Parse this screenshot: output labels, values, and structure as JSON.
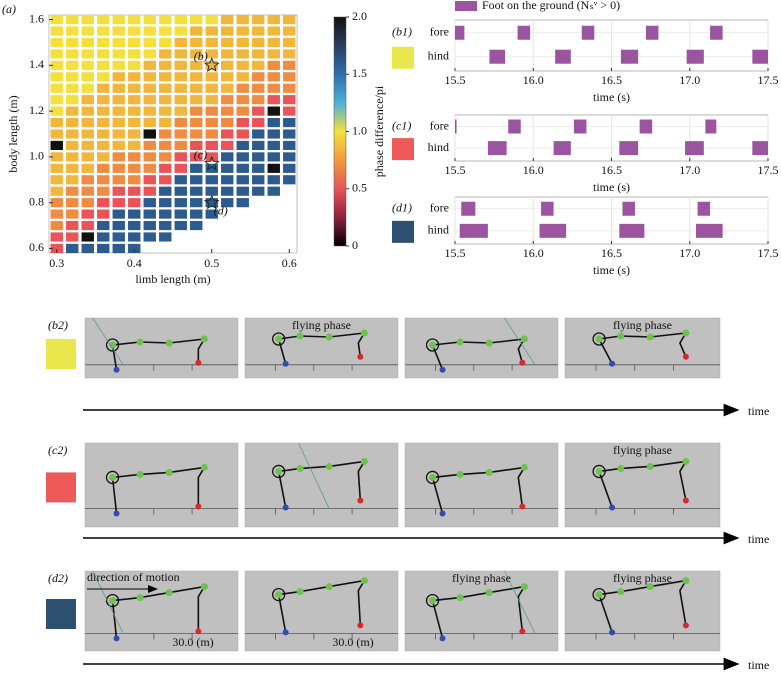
{
  "chart_data": [
    {
      "type": "heatmap",
      "label": "(a)",
      "xlabel": "limb length (m)",
      "ylabel": "body length (m)",
      "x": [
        0.3,
        0.32,
        0.34,
        0.36,
        0.38,
        0.4,
        0.42,
        0.44,
        0.46,
        0.48,
        0.5,
        0.52,
        0.54,
        0.56,
        0.58,
        0.6
      ],
      "y": [
        1.6,
        1.55,
        1.5,
        1.45,
        1.4,
        1.35,
        1.3,
        1.25,
        1.2,
        1.15,
        1.1,
        1.05,
        1.0,
        0.95,
        0.9,
        0.85,
        0.8,
        0.75,
        0.7,
        0.65,
        0.6
      ],
      "values": [
        [
          1,
          1,
          1,
          1,
          1,
          1,
          1,
          1,
          1,
          1,
          1,
          0.85,
          0.85,
          0.85,
          0.85,
          0.85
        ],
        [
          1,
          1,
          1,
          1,
          1,
          1,
          1,
          1,
          1,
          0.85,
          0.85,
          0.85,
          0.85,
          0.85,
          0.85,
          0.85
        ],
        [
          1,
          1,
          1,
          1,
          1,
          1,
          1,
          1,
          0.85,
          0.85,
          0.85,
          0.85,
          0.85,
          0.85,
          0.85,
          0.85
        ],
        [
          1,
          1,
          1,
          1,
          1,
          1,
          1,
          0.85,
          0.85,
          0.85,
          0.85,
          0.85,
          0.85,
          0.85,
          0.85,
          0.85
        ],
        [
          1,
          1,
          1,
          1,
          1,
          1,
          0.85,
          0.85,
          0.85,
          0.85,
          0.85,
          0.85,
          0.85,
          0.85,
          0.7,
          0.7
        ],
        [
          1,
          1,
          1,
          1,
          0.85,
          0.85,
          0.85,
          0.85,
          0.85,
          0.85,
          0.85,
          0.85,
          0.85,
          0.7,
          0.7,
          0.7
        ],
        [
          1,
          1,
          1,
          0.85,
          0.85,
          0.85,
          0.85,
          0.85,
          0.85,
          0.85,
          0.85,
          0.85,
          0.7,
          0.7,
          0.7,
          0.7
        ],
        [
          1,
          1,
          0.85,
          0.85,
          0.85,
          0.85,
          0.85,
          0.85,
          0.85,
          0.85,
          0.85,
          0.7,
          0.7,
          0.7,
          0.5,
          0.5
        ],
        [
          1,
          0.85,
          0.85,
          0.85,
          0.85,
          0.85,
          0.85,
          0.85,
          0.85,
          0.7,
          0.7,
          0.7,
          0.7,
          0.5,
          2,
          0.5
        ],
        [
          0.85,
          0.85,
          0.85,
          0.85,
          0.85,
          0.85,
          0.85,
          0.85,
          0.7,
          0.7,
          0.7,
          0.7,
          0.5,
          0.5,
          1.6,
          1.6
        ],
        [
          0.85,
          0.85,
          0.85,
          0.85,
          0.85,
          0.85,
          2,
          0.7,
          0.7,
          0.7,
          0.7,
          0.5,
          0.5,
          1.6,
          1.6,
          1.6
        ],
        [
          2,
          0.85,
          0.85,
          0.85,
          0.85,
          0.85,
          0.7,
          0.7,
          0.7,
          0.5,
          0.5,
          0.5,
          1.6,
          1.6,
          1.6,
          1.6
        ],
        [
          0.85,
          0.85,
          0.85,
          0.85,
          0.7,
          0.7,
          0.7,
          0.7,
          0.5,
          0.5,
          0.5,
          1.6,
          1.6,
          1.6,
          1.6,
          1.6
        ],
        [
          0.85,
          0.85,
          0.85,
          0.7,
          0.7,
          0.7,
          0.7,
          0.5,
          0.5,
          1.6,
          1.6,
          1.6,
          1.6,
          1.6,
          2,
          1.6
        ],
        [
          0.85,
          0.85,
          0.7,
          0.7,
          0.7,
          0.7,
          0.5,
          0.5,
          1.6,
          1.6,
          1.6,
          1.6,
          1.6,
          1.6,
          1.6,
          1.6
        ],
        [
          0.85,
          0.7,
          0.7,
          0.7,
          0.5,
          0.5,
          0.5,
          1.6,
          1.6,
          1.6,
          1.6,
          1.6,
          1.6,
          1.6,
          1.6,
          null
        ],
        [
          0.7,
          0.7,
          0.7,
          0.5,
          0.5,
          0.5,
          1.6,
          1.6,
          1.6,
          1.6,
          1.6,
          1.6,
          1.6,
          null,
          null,
          null
        ],
        [
          0.7,
          0.7,
          0.5,
          0.5,
          1.6,
          1.6,
          1.6,
          1.6,
          1.6,
          1.6,
          1.6,
          null,
          null,
          null,
          null,
          null
        ],
        [
          0.7,
          0.5,
          0.5,
          1.6,
          1.6,
          1.6,
          1.6,
          1.6,
          1.6,
          1.6,
          null,
          null,
          null,
          null,
          null,
          null
        ],
        [
          0.5,
          0.5,
          2,
          1.6,
          1.6,
          1.6,
          1.6,
          1.6,
          null,
          null,
          null,
          null,
          null,
          null,
          null,
          null
        ],
        [
          0.5,
          1.6,
          1.6,
          1.6,
          1.6,
          1.6,
          null,
          null,
          null,
          null,
          null,
          null,
          null,
          null,
          null,
          null
        ]
      ],
      "xlim": [
        0.29,
        0.61
      ],
      "ylim": [
        0.58,
        1.62
      ],
      "xticks": [
        0.3,
        0.4,
        0.5,
        0.6
      ],
      "yticks": [
        0.6,
        0.8,
        {
          "value": 1,
          "label": "1.0"
        },
        1.2,
        1.4,
        1.6
      ],
      "annotations": [
        {
          "x": 0.5,
          "y": 1.4,
          "text": "(b)"
        },
        {
          "x": 0.5,
          "y": 0.97,
          "text": "(c)"
        },
        {
          "x": 0.5,
          "y": 0.8,
          "text": "(d)"
        }
      ],
      "colorbar": {
        "label": "phase difference/pi",
        "lim": [
          0,
          2
        ],
        "ticks": [
          0,
          0.5,
          {
            "value": 1,
            "label": "1.0"
          },
          1.5,
          {
            "value": 2,
            "label": "2.0"
          }
        ],
        "colors": [
          "#000000",
          "#8e2040",
          "#e85458",
          "#f29a3c",
          "#f4e03c",
          "#4fb0d8",
          "#2f6fae",
          "#2a3e5c",
          "#111111"
        ]
      }
    },
    {
      "type": "gait",
      "label": "(b1)",
      "swatch": "#e8e84e",
      "xlabel": "time (s)",
      "categories": [
        "fore",
        "hind"
      ],
      "xlim": [
        15.5,
        17.5
      ],
      "xticks": [
        15.5,
        {
          "value": 16,
          "label": "16.0"
        },
        16.5,
        {
          "value": 17,
          "label": "17.0"
        },
        17.5
      ],
      "grid": true,
      "series": [
        {
          "name": "Foot on the ground (Nₛᵛ > 0)",
          "color": "#9b55a0",
          "values": [
            [
              [
                15.5,
                15.56
              ],
              [
                15.9,
                15.98
              ],
              [
                16.31,
                16.39
              ],
              [
                16.72,
                16.8
              ],
              [
                17.13,
                17.21
              ]
            ],
            [
              [
                15.72,
                15.82
              ],
              [
                16.14,
                16.24
              ],
              [
                16.56,
                16.67
              ],
              [
                16.98,
                17.09
              ],
              [
                17.4,
                17.5
              ]
            ]
          ]
        }
      ]
    },
    {
      "type": "gait",
      "label": "(c1)",
      "swatch": "#ee5a5a",
      "xlabel": "time (s)",
      "categories": [
        "fore",
        "hind"
      ],
      "xlim": [
        15.5,
        17.5
      ],
      "xticks": [
        15.5,
        {
          "value": 16,
          "label": "16.0"
        },
        16.5,
        {
          "value": 17,
          "label": "17.0"
        },
        17.5
      ],
      "grid": true,
      "series": [
        {
          "color": "#9b55a0",
          "values": [
            [
              [
                15.5,
                15.51
              ],
              [
                15.84,
                15.92
              ],
              [
                16.26,
                16.34
              ],
              [
                16.68,
                16.76
              ],
              [
                17.1,
                17.17
              ]
            ],
            [
              [
                15.71,
                15.83
              ],
              [
                16.13,
                16.24
              ],
              [
                16.55,
                16.67
              ],
              [
                16.97,
                17.09
              ],
              [
                17.4,
                17.5
              ]
            ]
          ]
        }
      ]
    },
    {
      "type": "gait",
      "label": "(d1)",
      "swatch": "#2e5070",
      "xlabel": "time (s)",
      "categories": [
        "fore",
        "hind"
      ],
      "xlim": [
        15.5,
        17.5
      ],
      "xticks": [
        15.5,
        {
          "value": 16,
          "label": "16.0"
        },
        16.5,
        {
          "value": 17,
          "label": "17.0"
        },
        17.5
      ],
      "grid": true,
      "series": [
        {
          "color": "#9b55a0",
          "values": [
            [
              [
                15.54,
                15.63
              ],
              [
                16.05,
                16.13
              ],
              [
                16.57,
                16.65
              ],
              [
                17.05,
                17.13
              ]
            ],
            [
              [
                15.53,
                15.71
              ],
              [
                16.04,
                16.21
              ],
              [
                16.55,
                16.71
              ],
              [
                17.04,
                17.21
              ]
            ]
          ]
        }
      ]
    }
  ],
  "snapshots": [
    {
      "label": "(b2)",
      "swatch": "#e8e84e",
      "axis_label": "time",
      "captions": [
        "flying phase",
        "flying phase"
      ]
    },
    {
      "label": "(c2)",
      "swatch": "#ee5a5a",
      "axis_label": "time",
      "captions": [
        "flying phase"
      ]
    },
    {
      "label": "(d2)",
      "swatch": "#2e5070",
      "axis_label": "time",
      "captions": [
        "direction of motion",
        "30.0 (m)",
        "30.0 (m)",
        "flying phase",
        "flying phase"
      ]
    }
  ]
}
